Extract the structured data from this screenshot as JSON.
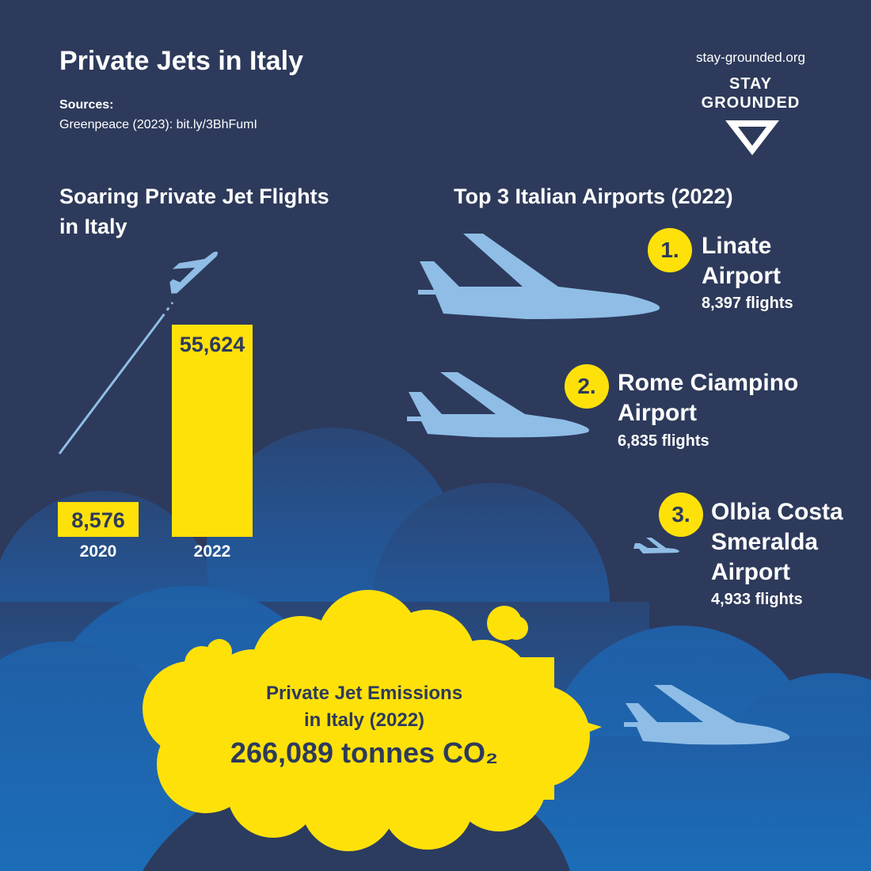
{
  "title": "Private Jets in Italy",
  "sources": {
    "heading": "Sources:",
    "text": "Greenpeace (2023): bit.ly/3BhFumI"
  },
  "logo": {
    "url": "stay-grounded.org",
    "line1": "STAY",
    "line2": "GROUNDED",
    "icon": "v-chevron-icon"
  },
  "flights_section": {
    "heading_line1": "Soaring Private Jet Flights",
    "heading_line2": "in Italy"
  },
  "chart_data": {
    "type": "bar",
    "categories": [
      "2020",
      "2022"
    ],
    "values": [
      8576,
      55624
    ],
    "value_labels": [
      "8,576",
      "55,624"
    ],
    "title": "Soaring Private Jet Flights in Italy"
  },
  "airports_section": {
    "heading": "Top 3 Italian Airports (2022)",
    "items": [
      {
        "rank": "1.",
        "name_line1": "Linate",
        "name_line2": "Airport",
        "name_line3": "",
        "flights": "8,397 flights"
      },
      {
        "rank": "2.",
        "name_line1": "Rome Ciampino",
        "name_line2": "Airport",
        "name_line3": "",
        "flights": "6,835 flights"
      },
      {
        "rank": "3.",
        "name_line1": "Olbia Costa",
        "name_line2": "Smeralda",
        "name_line3": "Airport",
        "flights": "4,933 flights"
      }
    ]
  },
  "emissions": {
    "line1": "Private Jet Emissions",
    "line2": "in Italy (2022)",
    "value": "266,089 tonnes CO₂"
  },
  "colors": {
    "background": "#2d3a5b",
    "accent": "#ffe10a",
    "plane": "#8fbde6",
    "cloud_dark": "#27497a",
    "cloud_light": "#1d67b0"
  }
}
